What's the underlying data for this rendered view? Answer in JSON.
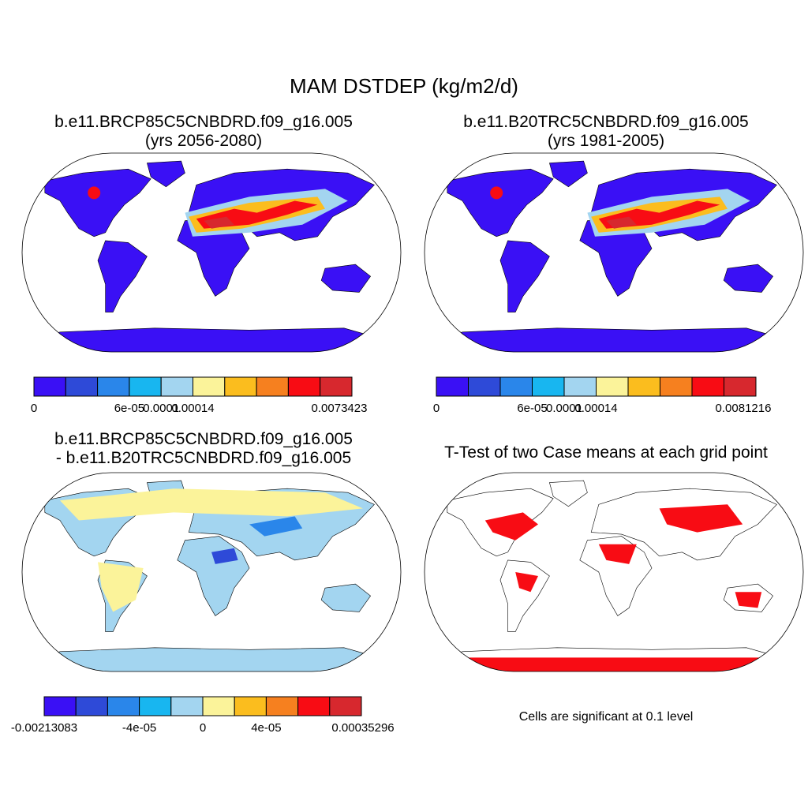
{
  "chart_data": {
    "type": "heatmap",
    "title": "MAM DSTDEP (kg/m2/d)",
    "palette": [
      "#3a10f5",
      "#2e4ad8",
      "#2a86ea",
      "#18b6f0",
      "#a3d5f0",
      "#fbf39a",
      "#fbbd1e",
      "#f6801f",
      "#f80c14",
      "#d7282e"
    ],
    "panels": [
      {
        "id": "p1",
        "title_line1": "b.e11.BRCP85C5CNBDRD.f09_g16.005",
        "title_line2": "(yrs 2056-2080)",
        "colorbar_labels": [
          "0",
          "6e-05",
          "0.0001",
          "0.00014",
          "0.0073423"
        ],
        "colorbar_label_positions": [
          0,
          3,
          4,
          5,
          7
        ]
      },
      {
        "id": "p2",
        "title_line1": "b.e11.B20TRC5CNBDRD.f09_g16.005",
        "title_line2": "(yrs 1981-2005)",
        "colorbar_labels": [
          "0",
          "6e-05",
          "0.0001",
          "0.00014",
          "0.0081216"
        ],
        "colorbar_label_positions": [
          0,
          3,
          4,
          5,
          7
        ]
      },
      {
        "id": "p3",
        "title_line1": "b.e11.BRCP85C5CNBDRD.f09_g16.005",
        "title_line2": "- b.e11.B20TRC5CNBDRD.f09_g16.005",
        "colorbar_labels": [
          "-0.00213083",
          "-4e-05",
          "0",
          "4e-05",
          "0.00035296"
        ],
        "colorbar_label_positions": [
          0,
          3,
          5,
          7,
          9
        ]
      },
      {
        "id": "p4",
        "title_line1": "T-Test of two Case means at each grid point",
        "note": "Cells are significant at 0.1 level",
        "significance_color": "#f80c14"
      }
    ]
  }
}
